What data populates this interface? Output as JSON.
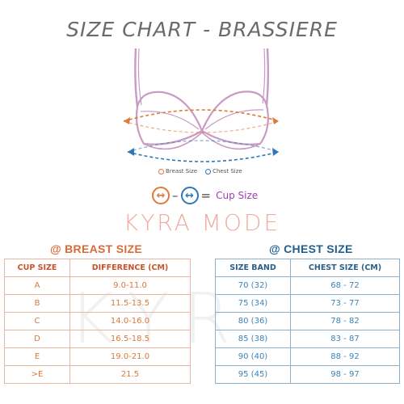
{
  "title": "SIZE CHART - BRASSIERE",
  "illustration": {
    "legend_breast": "Breast Size",
    "legend_chest": "Chest Size"
  },
  "formula": {
    "breast_glyph": "↔",
    "minus": "–",
    "chest_glyph": "↔",
    "equals": "=",
    "result_label": "Cup Size"
  },
  "brand": "KYRA MODE",
  "watermark": "KYR",
  "breast_table": {
    "section_title": "@ BREAST SIZE",
    "headers": [
      "CUP SIZE",
      "DIFFERENCE (CM)"
    ],
    "rows": [
      [
        "A",
        "9.0-11.0"
      ],
      [
        "B",
        "11.5-13.5"
      ],
      [
        "C",
        "14.0-16.0"
      ],
      [
        "D",
        "16.5-18.5"
      ],
      [
        "E",
        "19.0-21.0"
      ],
      [
        ">E",
        "21.5"
      ]
    ]
  },
  "chest_table": {
    "section_title": "@ CHEST SIZE",
    "headers": [
      "SIZE BAND",
      "CHEST SIZE (CM)"
    ],
    "rows": [
      [
        "70 (32)",
        "68 - 72"
      ],
      [
        "75 (34)",
        "73 - 77"
      ],
      [
        "80 (36)",
        "78 - 82"
      ],
      [
        "85 (38)",
        "83 - 87"
      ],
      [
        "90 (40)",
        "88 - 92"
      ],
      [
        "95 (45)",
        "98 - 97"
      ]
    ]
  },
  "colors": {
    "breast_accent": "#e07a3a",
    "chest_accent": "#2f78b7",
    "bra_outline": "#c99bc4",
    "brand": "#f0aaa0"
  }
}
